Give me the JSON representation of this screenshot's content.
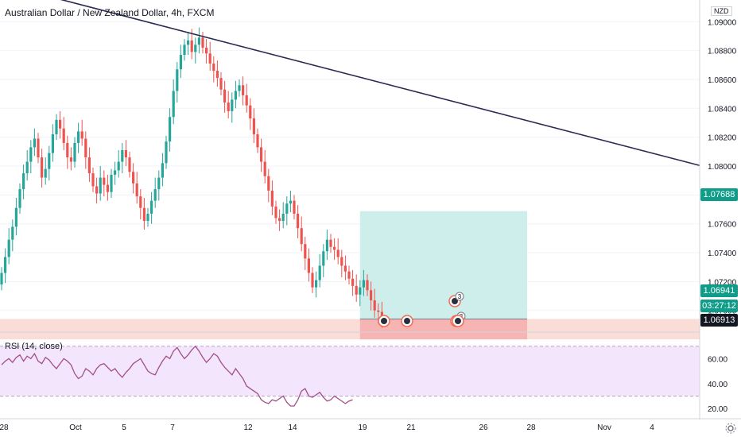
{
  "header": {
    "title": "Australian Dollar / New Zealand Dollar, 4h, FXCM",
    "currency": "NZD"
  },
  "rsi": {
    "label": "RSI (14, close)"
  },
  "badges": [
    {
      "price": "1.07688",
      "bg": "#0f9d8a"
    },
    {
      "price": "1.06941",
      "bg": "#0f9d8a"
    },
    {
      "time": "03:27:12",
      "bg": "#0f9d8a"
    },
    {
      "price": "1.06913",
      "bg": "#131722"
    }
  ],
  "colors": {
    "up": "#26a69a",
    "down": "#ef5350",
    "trendline": "#2b2a52",
    "target_zone": "#cdeeea",
    "stop_zone": "#f6b5b3",
    "rsi_band": "#f3e5fb",
    "rsi_line": "#a34e87"
  },
  "chart_data": {
    "type": "candlestick",
    "symbol": "AUDNZD",
    "timeframe": "4h",
    "y_axis": {
      "range": [
        1.0685,
        1.0915
      ],
      "ticks": [
        "1.09000",
        "1.08800",
        "1.08600",
        "1.08400",
        "1.08200",
        "1.08000",
        "1.07800",
        "1.07600",
        "1.07400",
        "1.07200",
        "1.07000"
      ]
    },
    "x_axis_ticks": [
      "28",
      "Oct",
      "5",
      "7",
      "12",
      "14",
      "19",
      "21",
      "26",
      "28",
      "Nov",
      "4"
    ],
    "closes": [
      1.0726,
      1.0737,
      1.0749,
      1.0758,
      1.0771,
      1.0784,
      1.0795,
      1.0803,
      1.0813,
      1.0819,
      1.0806,
      1.0792,
      1.0798,
      1.0809,
      1.0822,
      1.0832,
      1.0826,
      1.0816,
      1.0806,
      1.0803,
      1.0816,
      1.0824,
      1.0819,
      1.0806,
      1.0795,
      1.0786,
      1.0781,
      1.0792,
      1.0787,
      1.0782,
      1.0794,
      1.0797,
      1.0803,
      1.0811,
      1.0806,
      1.0796,
      1.0788,
      1.0779,
      1.0771,
      1.0762,
      1.0767,
      1.0776,
      1.0784,
      1.0792,
      1.0802,
      1.0817,
      1.0834,
      1.0852,
      1.0867,
      1.0877,
      1.0884,
      1.0887,
      1.0879,
      1.0884,
      1.0889,
      1.0882,
      1.0878,
      1.0871,
      1.0866,
      1.0861,
      1.0853,
      1.0844,
      1.0838,
      1.0846,
      1.0852,
      1.0856,
      1.0849,
      1.0842,
      1.0833,
      1.0822,
      1.0813,
      1.0803,
      1.0793,
      1.0783,
      1.0772,
      1.0764,
      1.0762,
      1.0767,
      1.0774,
      1.0776,
      1.0767,
      1.0757,
      1.0746,
      1.0736,
      1.0726,
      1.0716,
      1.0721,
      1.0731,
      1.0741,
      1.0749,
      1.0744,
      1.0742,
      1.0737,
      1.0731,
      1.0727,
      1.0722,
      1.0717,
      1.0711,
      1.0716,
      1.0721,
      1.0714,
      1.0707,
      1.07,
      1.0699,
      1.0694
    ],
    "trendline": {
      "from_index": 0,
      "from_price": 1.0922,
      "to_index": 104,
      "to_price": 1.08
    },
    "long_position": {
      "entry": 1.06941,
      "target": 1.07688,
      "stop": 1.068
    },
    "sell_zone_band": [
      1.068,
      1.06941
    ],
    "rsi": {
      "period": 14,
      "levels": [
        70,
        30
      ],
      "y_ticks": [
        "60.00",
        "40.00",
        "20.00"
      ],
      "values": [
        55,
        58,
        60,
        57,
        61,
        63,
        58,
        62,
        60,
        64,
        58,
        56,
        61,
        59,
        55,
        52,
        56,
        60,
        58,
        55,
        48,
        44,
        46,
        52,
        50,
        47,
        52,
        55,
        56,
        53,
        50,
        52,
        48,
        45,
        49,
        52,
        56,
        58,
        60,
        55,
        50,
        48,
        47,
        53,
        58,
        62,
        60,
        66,
        69,
        64,
        60,
        63,
        67,
        70,
        66,
        61,
        57,
        60,
        64,
        62,
        57,
        53,
        50,
        47,
        52,
        48,
        44,
        38,
        36,
        34,
        32,
        27,
        25,
        24,
        27,
        26,
        28,
        30,
        25,
        22,
        22,
        27,
        34,
        36,
        30,
        29,
        31,
        33,
        29,
        26,
        27,
        30,
        28,
        26,
        24,
        26,
        27
      ]
    },
    "events": [
      {
        "label": "3",
        "count": "3"
      },
      {
        "label": "3",
        "count": "3"
      }
    ]
  }
}
